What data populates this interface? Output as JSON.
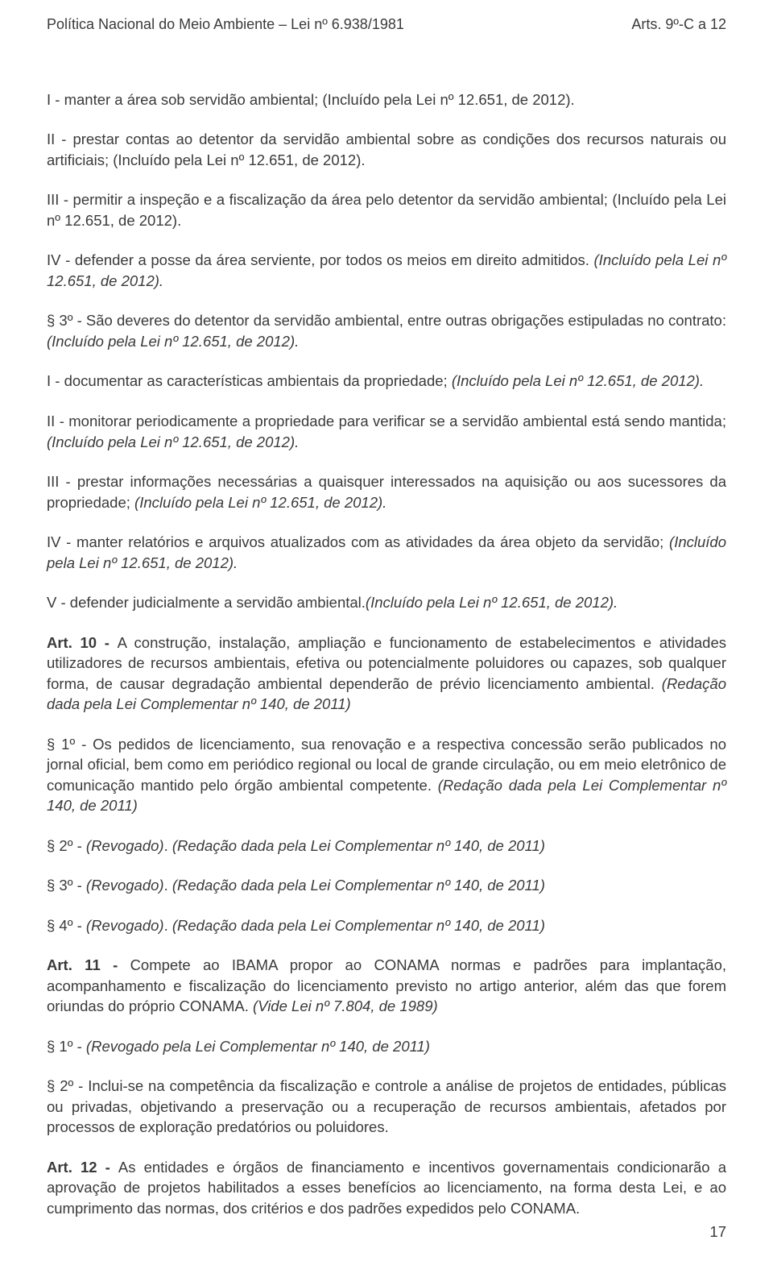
{
  "header": {
    "left": "Política Nacional do Meio Ambiente – Lei nº 6.938/1981",
    "right": "Arts. 9º-C a 12"
  },
  "paragraphs": {
    "p1": "I - manter a área sob servidão ambiental; (Incluído pela Lei nº 12.651, de 2012).",
    "p2": "II - prestar contas ao detentor da servidão ambiental sobre as condições dos recursos naturais ou artificiais; (Incluído pela Lei nº 12.651, de 2012).",
    "p3": "III - permitir a inspeção e a fiscalização da área pelo detentor da servidão ambiental; (Incluído pela Lei nº 12.651, de 2012).",
    "p4a": "IV - defender a posse da área serviente, por todos os meios em direito admitidos. ",
    "p4b": "(Incluído pela Lei nº 12.651, de 2012).",
    "p5a": "§ 3º - São deveres do detentor da servidão ambiental, entre outras obrigações estipuladas no contrato: ",
    "p5b": "(Incluído pela Lei nº 12.651, de 2012).",
    "p6a": "I - documentar as características ambientais da propriedade; ",
    "p6b": "(Incluído pela Lei nº 12.651, de 2012).",
    "p7a": "II - monitorar periodicamente a propriedade para verificar se a servidão ambiental está sendo mantida; ",
    "p7b": "(Incluído pela Lei nº 12.651, de 2012).",
    "p8a": "III - prestar informações necessárias a quaisquer interessados na aquisição ou aos sucessores da propriedade; ",
    "p8b": "(Incluído pela Lei nº 12.651, de 2012).",
    "p9a": "IV - manter relatórios e arquivos atualizados com as atividades da área objeto da servidão; ",
    "p9b": "(Incluído pela Lei nº 12.651, de 2012).",
    "p10a": "V - defender judicialmente a servidão ambiental.",
    "p10b": "(Incluído pela Lei nº 12.651, de 2012).",
    "p11a": "Art. 10 - ",
    "p11b": "A construção, instalação, ampliação e funcionamento de estabelecimentos e atividades utilizadores de recursos ambientais, efetiva ou potencialmente poluidores ou capazes, sob qualquer forma, de causar degradação ambiental dependerão de prévio licenciamento ambiental. ",
    "p11c": "(Redação dada pela Lei Complementar nº 140, de 2011)",
    "p12a": "§ 1º - Os pedidos de licenciamento, sua renovação e a respectiva concessão serão publicados no jornal oficial, bem como em periódico regional ou local de grande circulação, ou em meio eletrônico de comunicação mantido pelo órgão ambiental competente. ",
    "p12b": "(Redação dada pela Lei Complementar nº 140, de 2011)",
    "p13a": "§ 2º - ",
    "p13b": "(Revogado)",
    "p13c": ". ",
    "p13d": "(Redação dada pela Lei Complementar nº 140, de 2011)",
    "p14a": "§ 3º - ",
    "p14b": "(Revogado)",
    "p14c": ". ",
    "p14d": "(Redação dada pela Lei Complementar nº 140, de 2011)",
    "p15a": "§ 4º - ",
    "p15b": "(Revogado)",
    "p15c": ". ",
    "p15d": "(Redação dada pela Lei Complementar nº 140, de 2011)",
    "p16a": "Art. 11 - ",
    "p16b": "Compete ao IBAMA propor ao CONAMA normas e padrões para implantação, acompanhamento e fiscalização do licenciamento previsto no artigo anterior, além das que forem oriundas do próprio CONAMA. ",
    "p16c": "(Vide Lei nº 7.804, de 1989)",
    "p17a": "§ 1º - ",
    "p17b": "(Revogado pela Lei Complementar nº 140, de 2011)",
    "p18": "§ 2º - Inclui-se na competência da fiscalização e controle a análise de projetos de entidades, públicas ou privadas, objetivando a preservação ou a recuperação de recursos ambientais, afetados por processos de exploração predatórios ou poluidores.",
    "p19a": "Art. 12 - ",
    "p19b": "As entidades e órgãos de financiamento e incentivos governamentais condicionarão a aprovação de projetos habilitados a esses benefícios ao licenciamento, na forma desta Lei, e ao cumprimento das normas, dos critérios e dos padrões expedidos pelo CONAMA."
  },
  "pageNumber": "17"
}
